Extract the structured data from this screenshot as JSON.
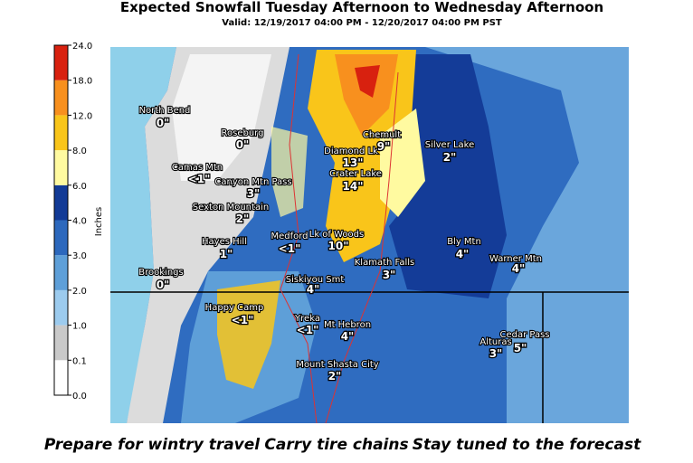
{
  "header": {
    "title": "Expected Snowfall Tuesday Afternoon to Wednesday Afternoon",
    "subtitle": "Valid: 12/19/2017 04:00 PM - 12/20/2017 04:00 PM PST"
  },
  "colorbar": {
    "label": "Inches",
    "ticks": [
      {
        "value": 0,
        "label": "0.0"
      },
      {
        "value": 0.1,
        "label": "0.1"
      },
      {
        "value": 1,
        "label": "1.0"
      },
      {
        "value": 2,
        "label": "2.0"
      },
      {
        "value": 3,
        "label": "3.0"
      },
      {
        "value": 4,
        "label": "4.0"
      },
      {
        "value": 6,
        "label": "6.0"
      },
      {
        "value": 8,
        "label": "8.0"
      },
      {
        "value": 12,
        "label": "12.0"
      },
      {
        "value": 18,
        "label": "18.0"
      },
      {
        "value": 24,
        "label": "24.0"
      }
    ],
    "colors": [
      "#ffffff",
      "#c9c9c9",
      "#9ccbee",
      "#5e9fd8",
      "#2c68bd",
      "#123a96",
      "#fffaa0",
      "#f9c51a",
      "#f8901e",
      "#d8210f"
    ]
  },
  "places": [
    {
      "name": "North Bend",
      "amount": "0\""
    },
    {
      "name": "Roseburg",
      "amount": "0\""
    },
    {
      "name": "Camas Mtn",
      "amount": "<1\""
    },
    {
      "name": "Canyon Mtn Pass",
      "amount": "3\""
    },
    {
      "name": "Sexton Mountain",
      "amount": "2\""
    },
    {
      "name": "Hayes Hill",
      "amount": "1\""
    },
    {
      "name": "Brookings",
      "amount": "0\""
    },
    {
      "name": "Medford",
      "amount": "<1\""
    },
    {
      "name": "Lk of Woods",
      "amount": "10\""
    },
    {
      "name": "Diamond Lk",
      "amount": "13\""
    },
    {
      "name": "Chemult",
      "amount": "9\""
    },
    {
      "name": "Crater Lake",
      "amount": "14\""
    },
    {
      "name": "Silver Lake",
      "amount": "2\""
    },
    {
      "name": "Bly Mtn",
      "amount": "4\""
    },
    {
      "name": "Warner Mtn",
      "amount": "4\""
    },
    {
      "name": "Klamath Falls",
      "amount": "3\""
    },
    {
      "name": "Siskiyou Smt",
      "amount": "4\""
    },
    {
      "name": "Happy Camp",
      "amount": "<1\""
    },
    {
      "name": "Yreka",
      "amount": "<1\""
    },
    {
      "name": "Mt Hebron",
      "amount": "4\""
    },
    {
      "name": "Cedar Pass",
      "amount": "5\""
    },
    {
      "name": "Alturas",
      "amount": "3\""
    },
    {
      "name": "Mount Shasta City",
      "amount": "2\""
    }
  ],
  "footer": [
    "Prepare for wintry travel",
    "Carry tire chains",
    "Stay tuned to the forecast"
  ]
}
